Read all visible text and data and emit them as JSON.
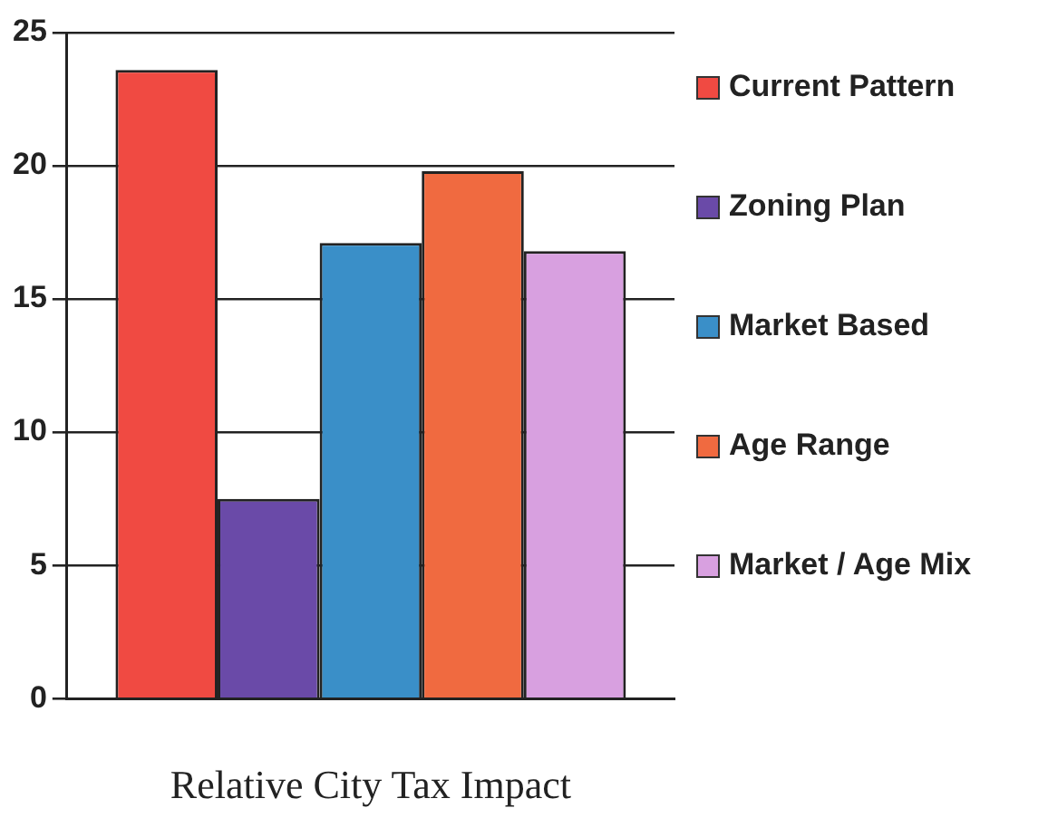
{
  "chart_data": {
    "type": "bar",
    "xlabel": "Relative City Tax Impact",
    "categories": [
      null
    ],
    "series": [
      {
        "name": "Current Pattern",
        "color": "#f04a42",
        "values": [
          23.6
        ]
      },
      {
        "name": "Zoning Plan",
        "color": "#6a4aa8",
        "values": [
          7.5
        ]
      },
      {
        "name": "Market Based",
        "color": "#3a8fc8",
        "values": [
          17.1
        ]
      },
      {
        "name": "Age Range",
        "color": "#f06a40",
        "values": [
          19.8
        ]
      },
      {
        "name": "Market / Age Mix",
        "color": "#d8a0e0",
        "values": [
          16.8
        ]
      }
    ],
    "ylim": [
      0,
      25
    ],
    "yticks": [
      0,
      5,
      10,
      15,
      20,
      25
    ],
    "grid": "y",
    "legend": "right"
  }
}
